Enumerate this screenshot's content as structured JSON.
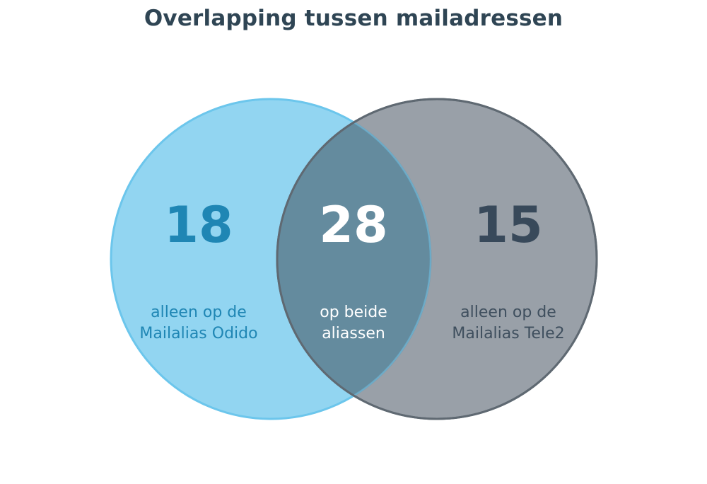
{
  "title": "Overlapping tussen mailadressen",
  "colors": {
    "left_fill": "#92d5f1",
    "left_stroke": "#6cc6ec",
    "right_fill": "#7c858f",
    "right_stroke": "#5f6972",
    "overlap_fill": "#648b9e",
    "left_text": "#1f86b4",
    "mid_text": "#ffffff",
    "right_text": "#38495a",
    "right_label_text": "#3f4f5e"
  },
  "sets": {
    "left": {
      "value": "18",
      "label_line1": "alleen op de",
      "label_line2": "Mailalias Odido"
    },
    "both": {
      "value": "28",
      "label_line1": "op beide",
      "label_line2": "aliassen"
    },
    "right": {
      "value": "15",
      "label_line1": "alleen op de",
      "label_line2": "Mailalias Tele2"
    }
  }
}
